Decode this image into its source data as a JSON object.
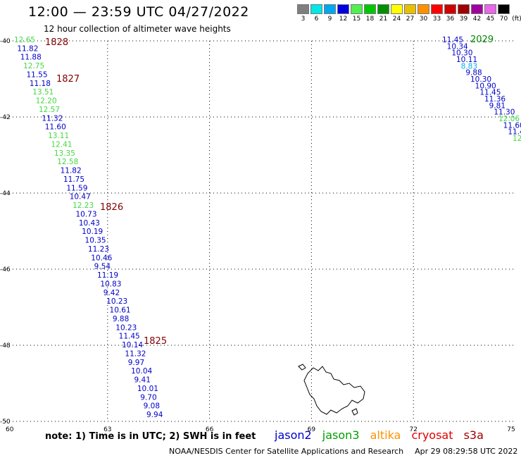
{
  "header": {
    "title": "12:00 — 23:59 UTC 04/27/2022",
    "subtitle": "12 hour collection of altimeter wave heights"
  },
  "scale": {
    "unit": "(ft)",
    "bins": [
      {
        "label": "3",
        "color": "#7f7f7f"
      },
      {
        "label": "6",
        "color": "#00e8e8"
      },
      {
        "label": "9",
        "color": "#00a8f0"
      },
      {
        "label": "12",
        "color": "#0000e0"
      },
      {
        "label": "15",
        "color": "#50f050"
      },
      {
        "label": "18",
        "color": "#00c800"
      },
      {
        "label": "21",
        "color": "#009000"
      },
      {
        "label": "24",
        "color": "#ffff00"
      },
      {
        "label": "27",
        "color": "#e8c000"
      },
      {
        "label": "30",
        "color": "#ff9000"
      },
      {
        "label": "33",
        "color": "#ff0000"
      },
      {
        "label": "36",
        "color": "#d00000"
      },
      {
        "label": "39",
        "color": "#a00000"
      },
      {
        "label": "42",
        "color": "#a000a0"
      },
      {
        "label": "45",
        "color": "#e868e8"
      },
      {
        "label": "70",
        "color": "#000000"
      }
    ]
  },
  "colors": {
    "jason2": "#0000c8",
    "jason3": "#00c800",
    "altika": "#ff9000",
    "cryosat": "#e00000",
    "s3a": "#c80000",
    "light_green": "#44d844",
    "track_label": "#800000",
    "pass_2029": "#008800"
  },
  "map": {
    "lon_ticks": [
      "60",
      "63",
      "66",
      "69",
      "72",
      "75"
    ],
    "lat_ticks": [
      "-40",
      "-42",
      "-44",
      "-46",
      "-48",
      "-50"
    ],
    "passes": [
      {
        "label": "1828",
        "color": "#800000"
      },
      {
        "label": "1827",
        "color": "#800000"
      },
      {
        "label": "1826",
        "color": "#800000"
      },
      {
        "label": "1825",
        "color": "#800000"
      },
      {
        "label": "2029",
        "color": "#008800"
      }
    ],
    "obs_left": [
      {
        "t": "12.65",
        "c": "light_green"
      },
      {
        "t": "11.82",
        "c": "jason2"
      },
      {
        "t": "11.88",
        "c": "jason2"
      },
      {
        "t": "12.75",
        "c": "light_green"
      },
      {
        "t": "11.55",
        "c": "jason2"
      },
      {
        "t": "11.18",
        "c": "jason2"
      },
      {
        "t": "13.51",
        "c": "light_green"
      },
      {
        "t": "12.20",
        "c": "light_green"
      },
      {
        "t": "12.57",
        "c": "light_green"
      },
      {
        "t": "11.32",
        "c": "jason2"
      },
      {
        "t": "11.60",
        "c": "jason2"
      },
      {
        "t": "13.11",
        "c": "light_green"
      },
      {
        "t": "12.41",
        "c": "light_green"
      },
      {
        "t": "13.35",
        "c": "light_green"
      },
      {
        "t": "12.58",
        "c": "light_green"
      },
      {
        "t": "11.82",
        "c": "jason2"
      },
      {
        "t": "11.75",
        "c": "jason2"
      },
      {
        "t": "11.59",
        "c": "jason2"
      },
      {
        "t": "10.47",
        "c": "jason2"
      },
      {
        "t": "12.23",
        "c": "light_green"
      },
      {
        "t": "10.73",
        "c": "jason2"
      },
      {
        "t": "10.43",
        "c": "jason2"
      },
      {
        "t": "10.19",
        "c": "jason2"
      },
      {
        "t": "10.35",
        "c": "jason2"
      },
      {
        "t": "11.23",
        "c": "jason2"
      },
      {
        "t": "10.46",
        "c": "jason2"
      },
      {
        "t": "9.54",
        "c": "jason2"
      },
      {
        "t": "11.19",
        "c": "jason2"
      },
      {
        "t": "10.83",
        "c": "jason2"
      },
      {
        "t": "9.42",
        "c": "jason2"
      },
      {
        "t": "10.23",
        "c": "jason2"
      },
      {
        "t": "10.61",
        "c": "jason2"
      },
      {
        "t": "9.88",
        "c": "jason2"
      },
      {
        "t": "10.23",
        "c": "jason2"
      },
      {
        "t": "11.45",
        "c": "jason2"
      },
      {
        "t": "10.14",
        "c": "jason2"
      },
      {
        "t": "11.32",
        "c": "jason2"
      },
      {
        "t": "9.97",
        "c": "jason2"
      },
      {
        "t": "10.04",
        "c": "jason2"
      },
      {
        "t": "9.41",
        "c": "jason2"
      },
      {
        "t": "10.01",
        "c": "jason2"
      },
      {
        "t": "9.70",
        "c": "jason2"
      },
      {
        "t": "9.08",
        "c": "jason2"
      },
      {
        "t": "9.94",
        "c": "jason2"
      }
    ],
    "obs_right": [
      {
        "t": "11.45",
        "c": "jason2"
      },
      {
        "t": "10.34",
        "c": "jason2"
      },
      {
        "t": "10.30",
        "c": "jason2"
      },
      {
        "t": "10.11",
        "c": "jason2"
      },
      {
        "t": "8.83",
        "c": "altika_cyan"
      },
      {
        "t": "9.88",
        "c": "jason2"
      },
      {
        "t": "10.30",
        "c": "jason2"
      },
      {
        "t": "10.90",
        "c": "jason2"
      },
      {
        "t": "11.45",
        "c": "jason2"
      },
      {
        "t": "11.36",
        "c": "jason2"
      },
      {
        "t": "9.81",
        "c": "jason2"
      },
      {
        "t": "11.30",
        "c": "jason2"
      },
      {
        "t": "12.06",
        "c": "light_green"
      },
      {
        "t": "11.60",
        "c": "jason2"
      },
      {
        "t": "11.4",
        "c": "jason2"
      },
      {
        "t": "12",
        "c": "light_green"
      }
    ]
  },
  "note": "note: 1) Time is in UTC; 2) SWH is in feet",
  "legend": [
    "jason2",
    "jason3",
    "altika",
    "cryosat",
    "s3a"
  ],
  "footer": {
    "org": "NOAA/NESDIS Center for Satellite Applications and Research",
    "date": "Apr 29 08:29:58 UTC 2022"
  }
}
